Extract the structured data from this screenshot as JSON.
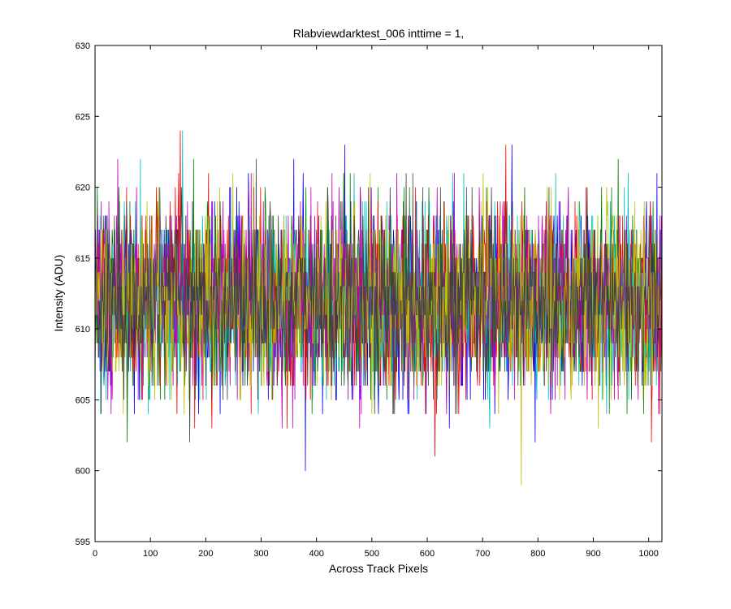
{
  "chart_data": {
    "type": "line",
    "title": "Rlabviewdarktest_006 inttime = 1,",
    "xlabel": "Across Track Pixels",
    "ylabel": "Intensity (ADU)",
    "xlim": [
      0,
      1024
    ],
    "ylim": [
      595,
      630
    ],
    "xticks": [
      0,
      100,
      200,
      300,
      400,
      500,
      600,
      700,
      800,
      900,
      1000
    ],
    "yticks": [
      595,
      600,
      605,
      610,
      615,
      620,
      625,
      630
    ],
    "xtick_labels": [
      "0",
      "100",
      "200",
      "300",
      "400",
      "500",
      "600",
      "700",
      "800",
      "900",
      "1000"
    ],
    "ytick_labels": [
      "595",
      "600",
      "605",
      "610",
      "615",
      "620",
      "625",
      "630"
    ],
    "grid": false,
    "legend": false,
    "colors": [
      "#0000ff",
      "#008000",
      "#ff0000",
      "#00bfbf",
      "#bf00bf",
      "#bfbf00",
      "#404040"
    ],
    "series_count": 7,
    "samples_per_series": 1024,
    "mean": 612,
    "typical_range": [
      605,
      619
    ],
    "observed_min": 599,
    "observed_max": 626
  }
}
